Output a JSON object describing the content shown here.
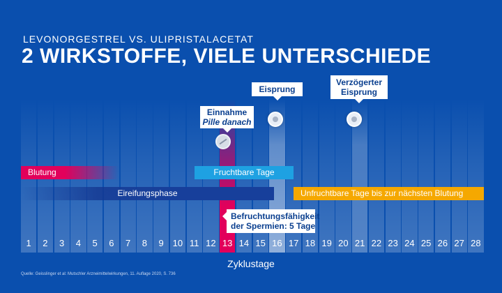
{
  "header": {
    "subtitle": "LEVONORGESTREL VS. ULIPRISTALACETAT",
    "title": "2 WIRKSTOFFE, VIELE UNTERSCHIEDE"
  },
  "days": [
    "1",
    "2",
    "3",
    "4",
    "5",
    "6",
    "7",
    "8",
    "9",
    "10",
    "11",
    "12",
    "13",
    "14",
    "15",
    "16",
    "17",
    "18",
    "19",
    "20",
    "21",
    "22",
    "23",
    "24",
    "25",
    "26",
    "27",
    "28"
  ],
  "phases": {
    "blutung": "Blutung",
    "fruchtbar": "Fruchtbare Tage",
    "eireifung": "Eireifungsphase",
    "unfruchtbar": "Unfruchtbare Tage bis zur nächsten Blutung"
  },
  "callouts": {
    "einnahme_line1": "Einnahme",
    "einnahme_line2": "Pille danach",
    "eisprung": "Eisprung",
    "verz_line1": "Verzögerter",
    "verz_line2": "Eisprung",
    "sperm_line1": "Befruchtungsfähigkeit",
    "sperm_line2": "der Spermien: 5 Tage"
  },
  "axis_label": "Zyklustage",
  "source": "Quelle: Geisslinger et al: Mutschler Arzneimittelwirkungen, 11. Auflage 2020, S. 736",
  "colors": {
    "background": "#0a4fae",
    "blutung": "#e2005b",
    "fruchtbar": "#1ea1e2",
    "eireifung": "#173f9b",
    "unfruchtbar": "#f5a800"
  },
  "icons": {
    "pill": "pill-icon",
    "ovum": "ovum-icon"
  }
}
